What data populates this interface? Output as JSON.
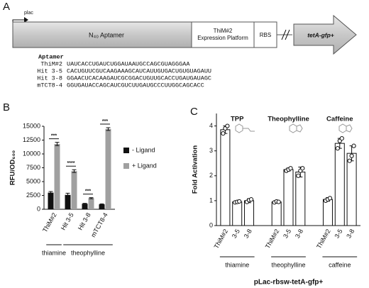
{
  "diagram": {
    "label": "A",
    "promoter": "plac",
    "aptamer_region": "N₄₀ Aptamer",
    "platform": [
      "ThiM#2",
      "Expression Platform"
    ],
    "rbs": "RBS",
    "reporter": "tetA-gfp+",
    "sequences": {
      "header": "Aptamer",
      "rows": [
        {
          "name": "ThiM#2",
          "sequence": "UAUCACCUGAUCUGGAUAAUGCCAGCGUAGGGAA"
        },
        {
          "name": "Hit 3-5",
          "sequence": "CACUGUUCGUCAAGAAAGCAUCAUUGUGACUGUGUAGAUU"
        },
        {
          "name": "Hit 3-8",
          "sequence": "GGAACUCACAAGAUCGCGGACUGUUGCACCUGAUGAUAGC"
        },
        {
          "name": "mTCT8-4",
          "sequence": "GGUGAUACCAGCAUCGUCUUGAUGCCCUUGGCAGCACC"
        }
      ]
    }
  },
  "chart_data": [
    {
      "type": "bar",
      "panel": "B",
      "ylabel": "RFU/OD₆₀₀",
      "categories": [
        "ThiM#2",
        "Hit 3-5",
        "Hit 3-8",
        "mTCT8-4"
      ],
      "series": [
        {
          "name": "- Ligand",
          "color": "#111111",
          "values": [
            3000,
            2600,
            1000,
            900
          ],
          "errors": [
            200,
            300,
            80,
            80
          ]
        },
        {
          "name": "+ Ligand",
          "color": "#a0a0a0",
          "values": [
            11800,
            6900,
            2000,
            14500
          ],
          "errors": [
            300,
            250,
            100,
            250
          ]
        }
      ],
      "significance": [
        "***",
        "****",
        "***",
        "***"
      ],
      "groups": [
        "thiamine",
        "theophylline"
      ],
      "ylim": [
        0,
        15000
      ],
      "yticks": [
        0,
        2500,
        5000,
        7500,
        10000,
        12500,
        15000
      ],
      "legend": "right"
    },
    {
      "type": "bar",
      "panel": "C",
      "ylabel": "Fold Activation",
      "xlabel": "pLac-rbsw-tetA-gfp+",
      "categories": [
        "ThiM#2",
        "3-5",
        "3-8",
        "ThiM#2",
        "3-5",
        "3-8",
        "ThiM#2",
        "3-5",
        "3-8"
      ],
      "values": [
        3.85,
        0.95,
        1.0,
        0.95,
        2.25,
        2.15,
        1.05,
        3.3,
        2.9
      ],
      "errors": [
        0.15,
        0.03,
        0.08,
        0.05,
        0.06,
        0.2,
        0.07,
        0.2,
        0.3
      ],
      "points": [
        [
          3.7,
          3.9,
          4.0
        ],
        [
          0.93,
          0.95,
          0.97
        ],
        [
          0.95,
          1.02,
          1.05
        ],
        [
          0.93,
          0.97,
          0.95
        ],
        [
          2.2,
          2.25,
          2.3
        ],
        [
          2.0,
          2.2,
          2.3
        ],
        [
          1.0,
          1.05,
          1.1
        ],
        [
          3.1,
          3.4,
          3.5
        ],
        [
          2.6,
          2.8,
          3.2
        ]
      ],
      "ligands": [
        "TPP",
        "Theophylline",
        "Caffeine"
      ],
      "groups": [
        "thiamine",
        "theophylline",
        "caffeine"
      ],
      "color": "#ffffff",
      "ylim": [
        0,
        4.5
      ],
      "yticks": [
        0,
        1,
        2,
        3,
        4
      ]
    }
  ]
}
